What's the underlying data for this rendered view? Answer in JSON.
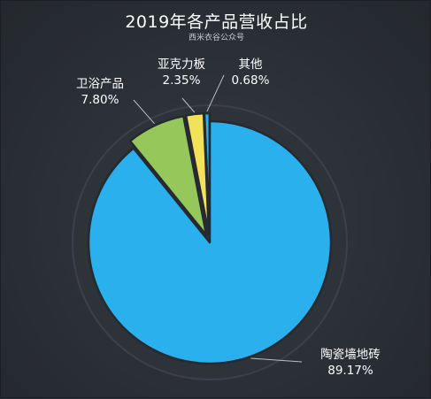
{
  "header": {
    "title": "2019年各产品营收占比",
    "subtitle": "西米衣谷公众号"
  },
  "chart_data": {
    "type": "pie",
    "title": "2019年各产品营收占比",
    "slices": [
      {
        "name": "陶瓷墙地砖",
        "value": 89.17,
        "label": "89.17%",
        "color": "#2bb0ee",
        "offset": false
      },
      {
        "name": "卫浴产品",
        "value": 7.8,
        "label": "7.80%",
        "color": "#96c75b",
        "offset": true
      },
      {
        "name": "亚克力板",
        "value": 2.35,
        "label": "2.35%",
        "color": "#f3e15a",
        "offset": true
      },
      {
        "name": "其他",
        "value": 0.68,
        "label": "0.68%",
        "color": "#2bb0ee",
        "offset": true
      }
    ]
  }
}
